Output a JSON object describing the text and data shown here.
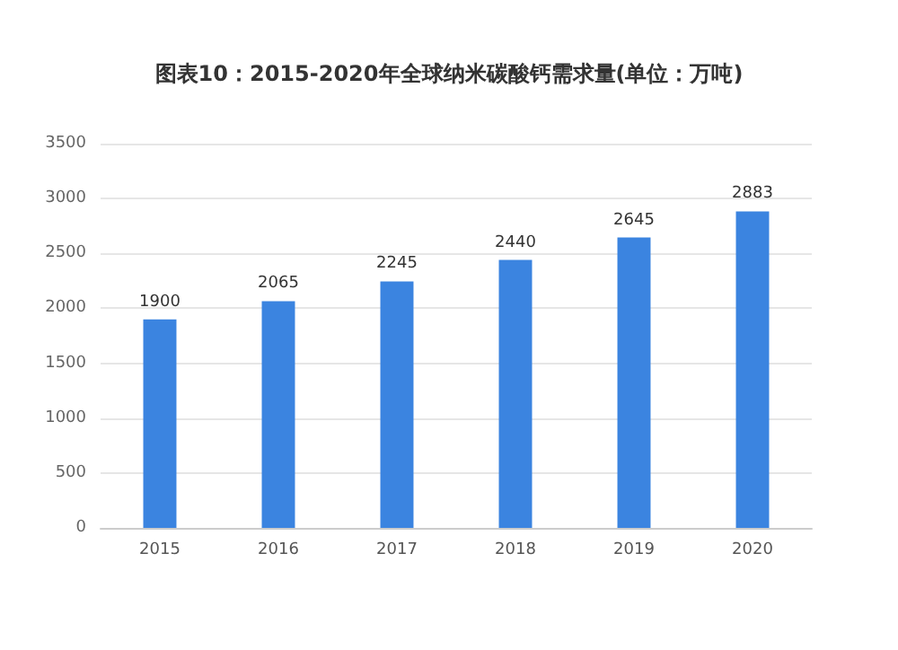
{
  "chart_data": {
    "type": "bar",
    "title": "图表10：2015-2020年全球纳米碳酸钙需求量(单位：万吨)",
    "categories": [
      "2015",
      "2016",
      "2017",
      "2018",
      "2019",
      "2020"
    ],
    "values": [
      1900,
      2065,
      2245,
      2440,
      2645,
      2883
    ],
    "color": "#3b84e0",
    "ylim": [
      0,
      3500
    ],
    "yticks": [
      0,
      500,
      1000,
      1500,
      2000,
      2500,
      3000,
      3500
    ],
    "grid": "y",
    "data_labels": true
  }
}
